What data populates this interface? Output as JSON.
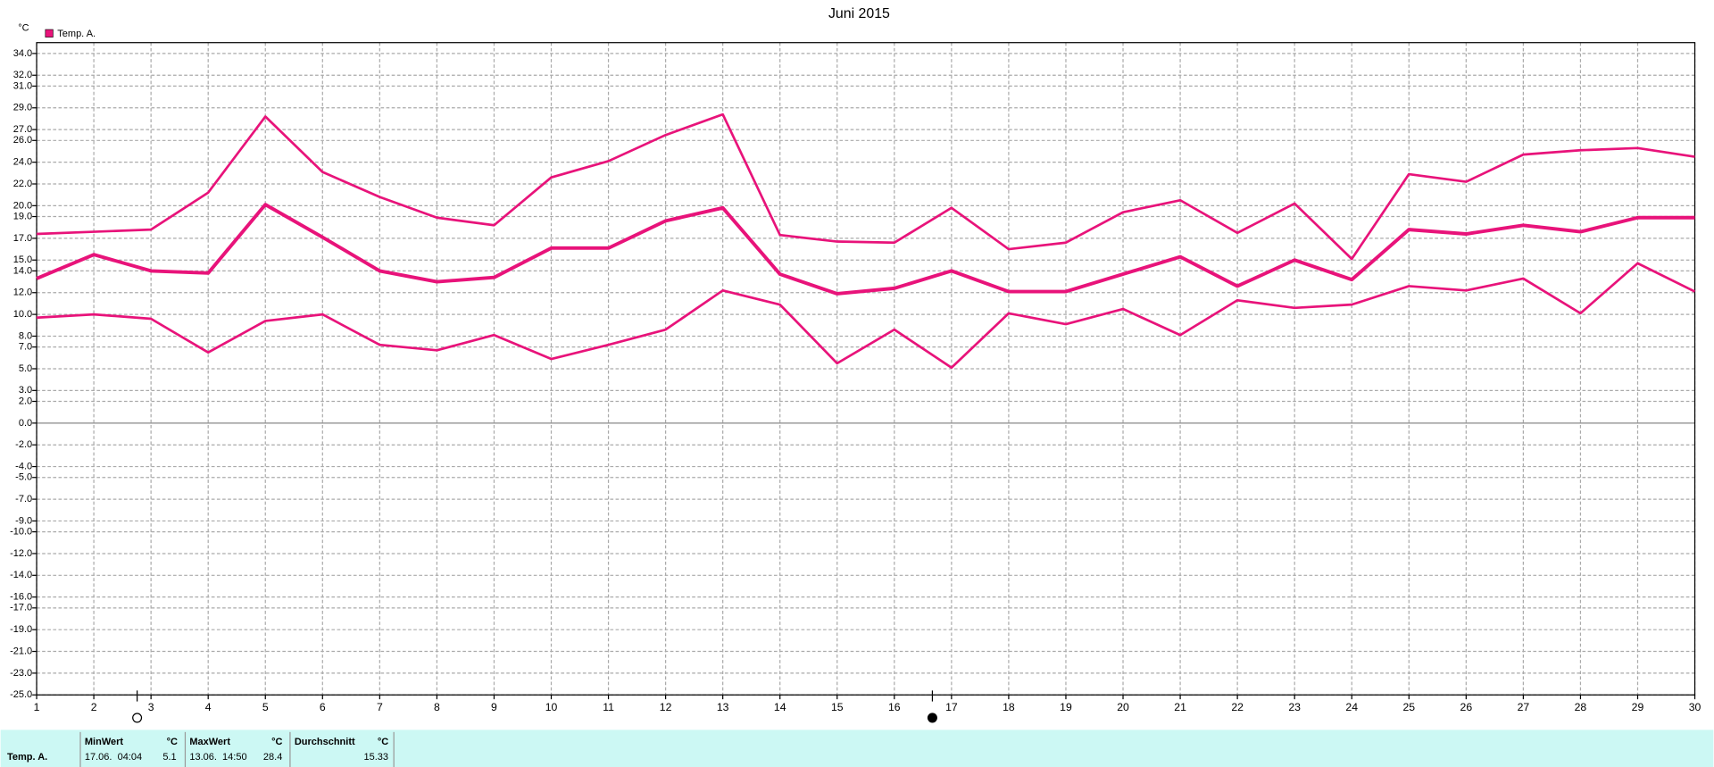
{
  "chart_data": {
    "type": "line",
    "title": "Juni 2015",
    "y_unit": "°C",
    "legend": {
      "label": "Temp. A.",
      "color": "#e8137a"
    },
    "x": [
      1,
      2,
      3,
      4,
      5,
      6,
      7,
      8,
      9,
      10,
      11,
      12,
      13,
      14,
      15,
      16,
      17,
      18,
      19,
      20,
      21,
      22,
      23,
      24,
      25,
      26,
      27,
      28,
      29,
      30
    ],
    "xlim": [
      1,
      30
    ],
    "xticks": [
      1,
      2,
      3,
      4,
      5,
      6,
      7,
      8,
      9,
      10,
      11,
      12,
      13,
      14,
      15,
      16,
      17,
      18,
      19,
      20,
      21,
      22,
      23,
      24,
      25,
      26,
      27,
      28,
      29,
      30
    ],
    "ylim": [
      -25,
      35
    ],
    "yticks": [
      {
        "value": 34,
        "label": "34.0"
      },
      {
        "value": 32,
        "label": "32.0"
      },
      {
        "value": 31,
        "label": "31.0"
      },
      {
        "value": 29,
        "label": "29.0"
      },
      {
        "value": 27,
        "label": "27.0"
      },
      {
        "value": 26,
        "label": "26.0"
      },
      {
        "value": 24,
        "label": "24.0"
      },
      {
        "value": 22,
        "label": "22.0"
      },
      {
        "value": 20,
        "label": "20.0"
      },
      {
        "value": 19,
        "label": "19.0"
      },
      {
        "value": 17,
        "label": "17.0"
      },
      {
        "value": 15,
        "label": "15.0"
      },
      {
        "value": 14,
        "label": "14.0"
      },
      {
        "value": 12,
        "label": "12.0"
      },
      {
        "value": 10,
        "label": "10.0"
      },
      {
        "value": 8,
        "label": "8.0"
      },
      {
        "value": 7,
        "label": "7.0"
      },
      {
        "value": 5,
        "label": "5.0"
      },
      {
        "value": 3,
        "label": "3.0"
      },
      {
        "value": 2,
        "label": "2.0"
      },
      {
        "value": 0,
        "label": "0.0"
      },
      {
        "value": -2,
        "label": "-2.0"
      },
      {
        "value": -4,
        "label": "-4.0"
      },
      {
        "value": -5,
        "label": "-5.0"
      },
      {
        "value": -7,
        "label": "-7.0"
      },
      {
        "value": -9,
        "label": "-9.0"
      },
      {
        "value": -10,
        "label": "-10.0"
      },
      {
        "value": -12,
        "label": "-12.0"
      },
      {
        "value": -14,
        "label": "-14.0"
      },
      {
        "value": -16,
        "label": "-16.0"
      },
      {
        "value": -17,
        "label": "-17.0"
      },
      {
        "value": -19,
        "label": "-19.0"
      },
      {
        "value": -21,
        "label": "-21.0"
      },
      {
        "value": -23,
        "label": "-23.0"
      },
      {
        "value": -25,
        "label": "-25.0"
      }
    ],
    "grid": true,
    "series": [
      {
        "color": "#e8137a",
        "width": 2.2,
        "values": [
          17.4,
          17.6,
          17.8,
          21.2,
          28.2,
          23.1,
          20.8,
          18.9,
          18.2,
          22.6,
          24.1,
          26.5,
          28.4,
          17.3,
          16.7,
          16.6,
          19.8,
          16.0,
          16.6,
          19.4,
          20.5,
          17.5,
          20.2,
          15.1,
          22.9,
          22.2,
          24.7,
          25.1,
          25.3,
          24.5
        ]
      },
      {
        "color": "#e8137a",
        "width": 3.2,
        "values": [
          13.3,
          15.5,
          14.0,
          13.8,
          20.1,
          17.1,
          14.0,
          13.0,
          13.4,
          16.1,
          16.1,
          18.6,
          19.8,
          13.7,
          11.9,
          12.4,
          14.0,
          12.1,
          12.1,
          13.7,
          15.3,
          12.6,
          15.0,
          13.2,
          17.8,
          17.4,
          18.2,
          17.6,
          18.9,
          18.9
        ]
      },
      {
        "color": "#e8137a",
        "width": 2.2,
        "values": [
          9.7,
          10.0,
          9.6,
          6.5,
          9.4,
          10.0,
          7.2,
          6.7,
          8.1,
          5.9,
          7.2,
          8.6,
          12.2,
          10.9,
          5.5,
          8.6,
          5.1,
          10.1,
          9.1,
          10.5,
          8.1,
          11.3,
          10.6,
          10.9,
          12.6,
          12.2,
          13.3,
          10.1,
          14.7,
          12.1
        ]
      }
    ]
  },
  "table": {
    "header": [
      "MinWert",
      "°C",
      "MaxWert",
      "°C",
      "Durchschnitt",
      "°C"
    ],
    "rows": [
      [
        "Temp. A.",
        "17.06.  04:04",
        "5.1",
        "13.06.  14:50",
        "28.4",
        "15.33"
      ]
    ]
  }
}
